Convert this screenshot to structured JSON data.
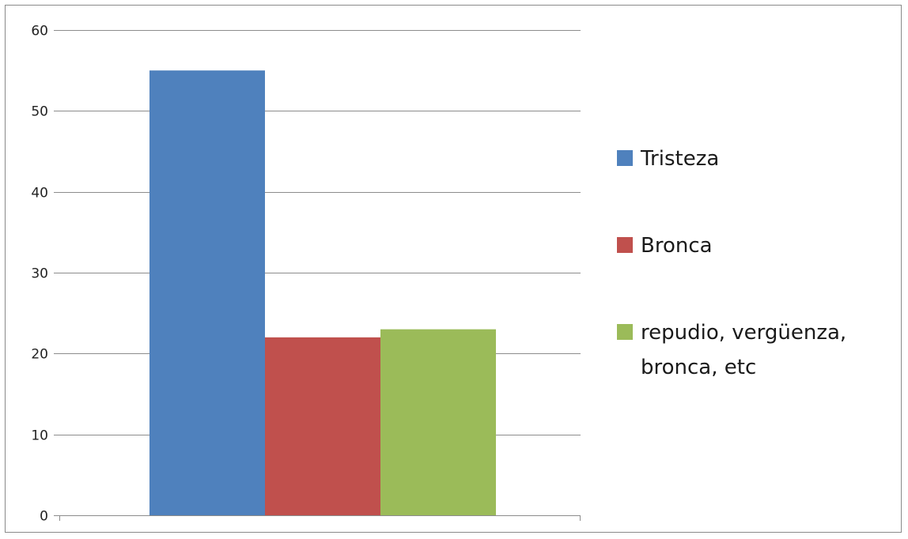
{
  "chart_data": {
    "type": "bar",
    "categories": [
      ""
    ],
    "series": [
      {
        "name": "Tristeza",
        "values": [
          55
        ],
        "color": "#4F81BD"
      },
      {
        "name": "Bronca",
        "values": [
          22
        ],
        "color": "#C0504D"
      },
      {
        "name": "repudio, vergüenza, bronca, etc",
        "values": [
          23
        ],
        "color": "#9BBB59"
      }
    ],
    "legend_lines": [
      [
        "Tristeza"
      ],
      [
        "Bronca"
      ],
      [
        "repudio, vergüenza,",
        "bronca, etc"
      ]
    ],
    "title": "",
    "xlabel": "",
    "ylabel": "",
    "ylim": [
      0,
      60
    ],
    "yticks": [
      0,
      10,
      20,
      30,
      40,
      50,
      60
    ],
    "grid": true,
    "legend_position": "right"
  }
}
